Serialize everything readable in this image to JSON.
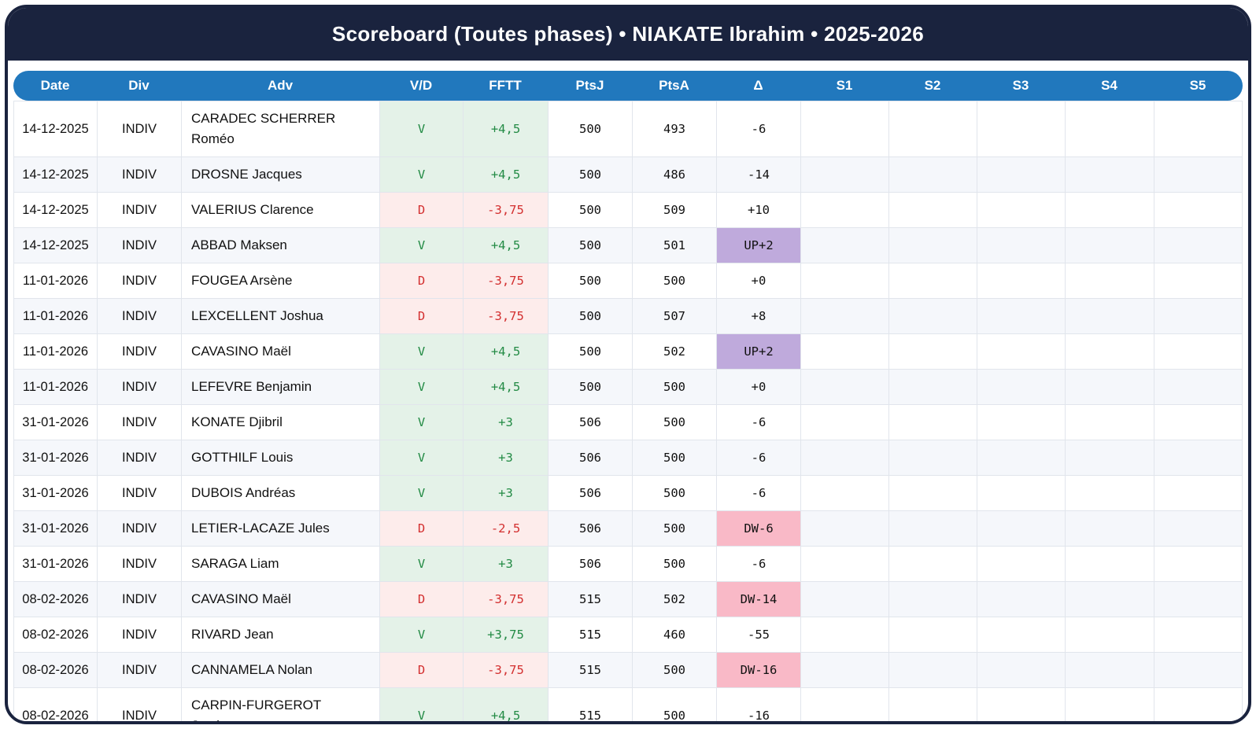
{
  "title": "Scoreboard (Toutes phases) • NIAKATE Ibrahim • 2025-2026",
  "columns": [
    "Date",
    "Div",
    "Adv",
    "V/D",
    "FFTT",
    "PtsJ",
    "PtsA",
    "Δ",
    "S1",
    "S2",
    "S3",
    "S4",
    "S5"
  ],
  "colors": {
    "navy": "#1a233e",
    "blue": "#2178bd",
    "stripe": "#f5f7fb",
    "win-bg": "#e4f2e8",
    "win-text": "#238b45",
    "loss-bg": "#fdeceb",
    "loss-text": "#d32f2f",
    "up-bg": "#bfaadc",
    "down-bg": "#f9b9c7"
  },
  "rows": [
    {
      "date": "14-12-2025",
      "div": "INDIV",
      "adv": "CARADEC SCHERRER Roméo",
      "vd": "V",
      "fftt": "+4,5",
      "ptsj": "500",
      "ptsa": "493",
      "delta": "-6",
      "result": "win",
      "delta_type": "none",
      "s1": "",
      "s2": "",
      "s3": "",
      "s4": "",
      "s5": ""
    },
    {
      "date": "14-12-2025",
      "div": "INDIV",
      "adv": "DROSNE Jacques",
      "vd": "V",
      "fftt": "+4,5",
      "ptsj": "500",
      "ptsa": "486",
      "delta": "-14",
      "result": "win",
      "delta_type": "none",
      "s1": "",
      "s2": "",
      "s3": "",
      "s4": "",
      "s5": ""
    },
    {
      "date": "14-12-2025",
      "div": "INDIV",
      "adv": "VALERIUS Clarence",
      "vd": "D",
      "fftt": "-3,75",
      "ptsj": "500",
      "ptsa": "509",
      "delta": "+10",
      "result": "loss",
      "delta_type": "none",
      "s1": "",
      "s2": "",
      "s3": "",
      "s4": "",
      "s5": ""
    },
    {
      "date": "14-12-2025",
      "div": "INDIV",
      "adv": "ABBAD Maksen",
      "vd": "V",
      "fftt": "+4,5",
      "ptsj": "500",
      "ptsa": "501",
      "delta": "UP+2",
      "result": "win",
      "delta_type": "up",
      "s1": "",
      "s2": "",
      "s3": "",
      "s4": "",
      "s5": ""
    },
    {
      "date": "11-01-2026",
      "div": "INDIV",
      "adv": "FOUGEA Arsène",
      "vd": "D",
      "fftt": "-3,75",
      "ptsj": "500",
      "ptsa": "500",
      "delta": "+0",
      "result": "loss",
      "delta_type": "none",
      "s1": "",
      "s2": "",
      "s3": "",
      "s4": "",
      "s5": ""
    },
    {
      "date": "11-01-2026",
      "div": "INDIV",
      "adv": "LEXCELLENT Joshua",
      "vd": "D",
      "fftt": "-3,75",
      "ptsj": "500",
      "ptsa": "507",
      "delta": "+8",
      "result": "loss",
      "delta_type": "none",
      "s1": "",
      "s2": "",
      "s3": "",
      "s4": "",
      "s5": ""
    },
    {
      "date": "11-01-2026",
      "div": "INDIV",
      "adv": "CAVASINO Maël",
      "vd": "V",
      "fftt": "+4,5",
      "ptsj": "500",
      "ptsa": "502",
      "delta": "UP+2",
      "result": "win",
      "delta_type": "up",
      "s1": "",
      "s2": "",
      "s3": "",
      "s4": "",
      "s5": ""
    },
    {
      "date": "11-01-2026",
      "div": "INDIV",
      "adv": "LEFEVRE Benjamin",
      "vd": "V",
      "fftt": "+4,5",
      "ptsj": "500",
      "ptsa": "500",
      "delta": "+0",
      "result": "win",
      "delta_type": "none",
      "s1": "",
      "s2": "",
      "s3": "",
      "s4": "",
      "s5": ""
    },
    {
      "date": "31-01-2026",
      "div": "INDIV",
      "adv": "KONATE Djibril",
      "vd": "V",
      "fftt": "+3",
      "ptsj": "506",
      "ptsa": "500",
      "delta": "-6",
      "result": "win",
      "delta_type": "none",
      "s1": "",
      "s2": "",
      "s3": "",
      "s4": "",
      "s5": ""
    },
    {
      "date": "31-01-2026",
      "div": "INDIV",
      "adv": "GOTTHILF Louis",
      "vd": "V",
      "fftt": "+3",
      "ptsj": "506",
      "ptsa": "500",
      "delta": "-6",
      "result": "win",
      "delta_type": "none",
      "s1": "",
      "s2": "",
      "s3": "",
      "s4": "",
      "s5": ""
    },
    {
      "date": "31-01-2026",
      "div": "INDIV",
      "adv": "DUBOIS Andréas",
      "vd": "V",
      "fftt": "+3",
      "ptsj": "506",
      "ptsa": "500",
      "delta": "-6",
      "result": "win",
      "delta_type": "none",
      "s1": "",
      "s2": "",
      "s3": "",
      "s4": "",
      "s5": ""
    },
    {
      "date": "31-01-2026",
      "div": "INDIV",
      "adv": "LETIER-LACAZE Jules",
      "vd": "D",
      "fftt": "-2,5",
      "ptsj": "506",
      "ptsa": "500",
      "delta": "DW-6",
      "result": "loss",
      "delta_type": "down",
      "s1": "",
      "s2": "",
      "s3": "",
      "s4": "",
      "s5": ""
    },
    {
      "date": "31-01-2026",
      "div": "INDIV",
      "adv": "SARAGA Liam",
      "vd": "V",
      "fftt": "+3",
      "ptsj": "506",
      "ptsa": "500",
      "delta": "-6",
      "result": "win",
      "delta_type": "none",
      "s1": "",
      "s2": "",
      "s3": "",
      "s4": "",
      "s5": ""
    },
    {
      "date": "08-02-2026",
      "div": "INDIV",
      "adv": "CAVASINO Maël",
      "vd": "D",
      "fftt": "-3,75",
      "ptsj": "515",
      "ptsa": "502",
      "delta": "DW-14",
      "result": "loss",
      "delta_type": "down",
      "s1": "",
      "s2": "",
      "s3": "",
      "s4": "",
      "s5": ""
    },
    {
      "date": "08-02-2026",
      "div": "INDIV",
      "adv": "RIVARD Jean",
      "vd": "V",
      "fftt": "+3,75",
      "ptsj": "515",
      "ptsa": "460",
      "delta": "-55",
      "result": "win",
      "delta_type": "none",
      "s1": "",
      "s2": "",
      "s3": "",
      "s4": "",
      "s5": ""
    },
    {
      "date": "08-02-2026",
      "div": "INDIV",
      "adv": "CANNAMELA Nolan",
      "vd": "D",
      "fftt": "-3,75",
      "ptsj": "515",
      "ptsa": "500",
      "delta": "DW-16",
      "result": "loss",
      "delta_type": "down",
      "s1": "",
      "s2": "",
      "s3": "",
      "s4": "",
      "s5": ""
    },
    {
      "date": "08-02-2026",
      "div": "INDIV",
      "adv": "CARPIN-FURGEROT Jayden",
      "vd": "V",
      "fftt": "+4,5",
      "ptsj": "515",
      "ptsa": "500",
      "delta": "-16",
      "result": "win",
      "delta_type": "none",
      "s1": "",
      "s2": "",
      "s3": "",
      "s4": "",
      "s5": ""
    }
  ]
}
